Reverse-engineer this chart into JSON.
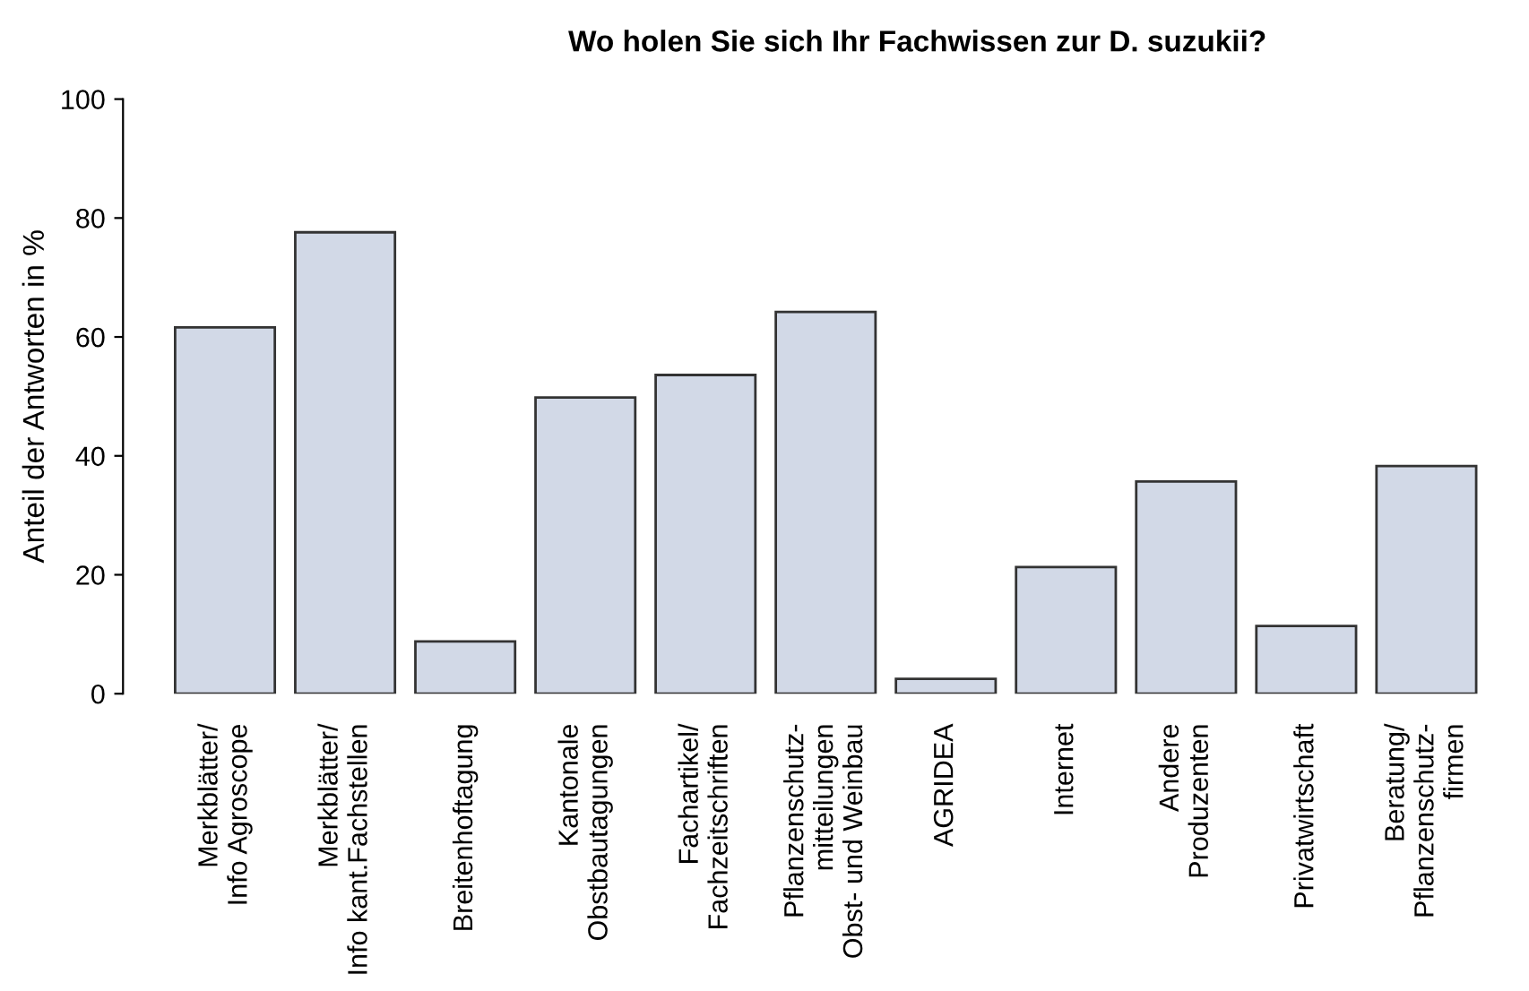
{
  "chart_data": {
    "type": "bar",
    "title": "Wo holen Sie sich Ihr Fachwissen zur D. suzukii?",
    "ylabel": "Anteil der Antworten in %",
    "categories": [
      "Merkblätter/\nInfo Agroscope",
      "Merkblätter/\nInfo kant.Fachstellen",
      "Breitenhoftagung",
      "Kantonale\nObstbautagungen",
      "Fachartikel/\nFachzeitschriften",
      "Pflanzenschutz-\nmitteilungen\nObst- und Weinbau",
      "AGRIDEA",
      "Internet",
      "Andere\nProduzenten",
      "Privatwirtschaft",
      "Beratung/\nPflanzenschutz-\nfirmen"
    ],
    "values": [
      61.6,
      77.6,
      8.8,
      49.8,
      53.6,
      64.2,
      2.5,
      21.3,
      35.7,
      11.4,
      38.3
    ],
    "color": "#d2d9e7",
    "ylim": [
      0,
      100
    ],
    "yticks": [
      0,
      20,
      40,
      60,
      80,
      100
    ],
    "grid": false
  }
}
